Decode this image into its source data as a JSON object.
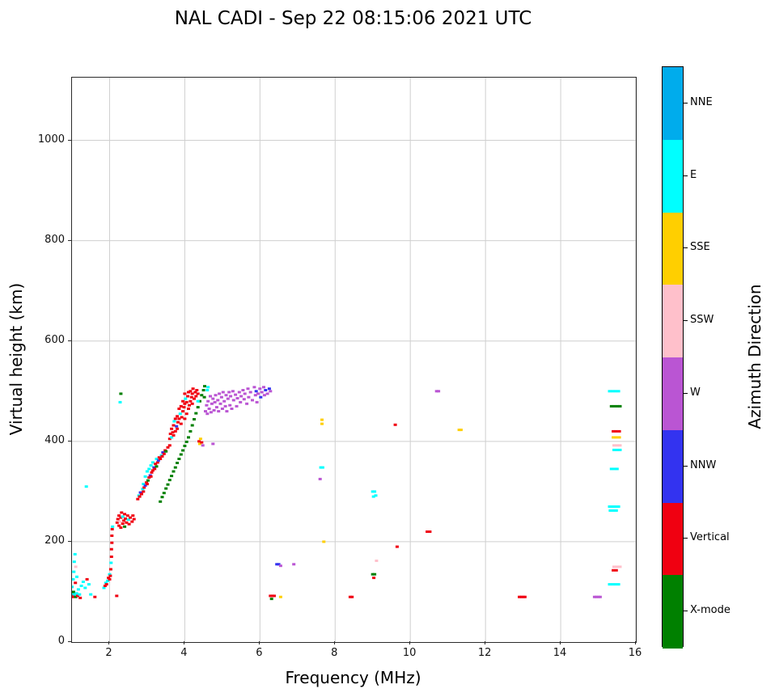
{
  "title": "NAL CADI - Sep 22 08:15:06 2021 UTC",
  "chart_data": {
    "type": "scatter",
    "title": "NAL CADI - Sep 22 08:15:06 2021 UTC",
    "xlabel": "Frequency (MHz)",
    "ylabel": "Virtual height (km)",
    "xlim": [
      1,
      16
    ],
    "ylim": [
      0,
      1125
    ],
    "xticks": [
      2,
      4,
      6,
      8,
      10,
      12,
      14,
      16
    ],
    "yticks": [
      0,
      200,
      400,
      600,
      800,
      1000
    ],
    "grid": true,
    "grid_color": "#cfcfcf",
    "legend": {
      "title": "Azimuth Direction",
      "position": "right-colorbar",
      "entries": [
        {
          "label": "NNE",
          "color": "#00ACEC"
        },
        {
          "label": "E",
          "color": "#00FFFF"
        },
        {
          "label": "SSE",
          "color": "#FFCF00"
        },
        {
          "label": "SSW",
          "color": "#FFC0CB"
        },
        {
          "label": "W",
          "color": "#BA55D3"
        },
        {
          "label": "NNW",
          "color": "#3333F0"
        },
        {
          "label": "Vertical",
          "color": "#F00011"
        },
        {
          "label": "X-mode",
          "color": "#008000"
        }
      ]
    },
    "series_key": {
      "NNE": "NNE",
      "E": "E",
      "SSE": "SSE",
      "SSW": "SSW",
      "W": "W",
      "NNW": "NNW",
      "V": "Vertical",
      "X": "X-mode"
    },
    "points": [
      [
        1.0,
        95,
        "E"
      ],
      [
        1.0,
        110,
        "E"
      ],
      [
        1.02,
        90,
        "V"
      ],
      [
        1.03,
        125,
        "E"
      ],
      [
        1.04,
        100,
        "X"
      ],
      [
        1.05,
        92,
        "V"
      ],
      [
        1.05,
        140,
        "E"
      ],
      [
        1.06,
        160,
        "E"
      ],
      [
        1.07,
        95,
        "E"
      ],
      [
        1.08,
        175,
        "E"
      ],
      [
        1.09,
        118,
        "V"
      ],
      [
        1.1,
        90,
        "X"
      ],
      [
        1.1,
        150,
        "SSW"
      ],
      [
        1.12,
        97,
        "E"
      ],
      [
        1.13,
        130,
        "E"
      ],
      [
        1.15,
        92,
        "V"
      ],
      [
        1.17,
        105,
        "E"
      ],
      [
        1.2,
        95,
        "E"
      ],
      [
        1.22,
        88,
        "V"
      ],
      [
        1.25,
        112,
        "E"
      ],
      [
        1.3,
        120,
        "E"
      ],
      [
        1.35,
        108,
        "E"
      ],
      [
        1.38,
        310,
        "E"
      ],
      [
        1.4,
        125,
        "V"
      ],
      [
        1.45,
        115,
        "E"
      ],
      [
        1.5,
        95,
        "E"
      ],
      [
        1.61,
        90,
        "V"
      ],
      [
        1.85,
        108,
        "E"
      ],
      [
        1.88,
        112,
        "V"
      ],
      [
        1.9,
        118,
        "E"
      ],
      [
        1.92,
        115,
        "V"
      ],
      [
        1.95,
        122,
        "E"
      ],
      [
        1.97,
        128,
        "V"
      ],
      [
        2.0,
        125,
        "V"
      ],
      [
        2.0,
        135,
        "E"
      ],
      [
        2.02,
        132,
        "V"
      ],
      [
        2.03,
        145,
        "V"
      ],
      [
        2.04,
        158,
        "E"
      ],
      [
        2.05,
        170,
        "V"
      ],
      [
        2.05,
        185,
        "V"
      ],
      [
        2.06,
        198,
        "V"
      ],
      [
        2.06,
        212,
        "V"
      ],
      [
        2.07,
        225,
        "V"
      ],
      [
        2.08,
        230,
        "E"
      ],
      [
        2.19,
        92,
        "V"
      ],
      [
        2.2,
        238,
        "V"
      ],
      [
        2.22,
        245,
        "V"
      ],
      [
        2.25,
        232,
        "V"
      ],
      [
        2.25,
        252,
        "V"
      ],
      [
        2.28,
        240,
        "SSW"
      ],
      [
        2.3,
        228,
        "V"
      ],
      [
        2.3,
        248,
        "V"
      ],
      [
        2.32,
        258,
        "V"
      ],
      [
        2.35,
        236,
        "V"
      ],
      [
        2.35,
        250,
        "E"
      ],
      [
        2.38,
        242,
        "V"
      ],
      [
        2.4,
        230,
        "X"
      ],
      [
        2.4,
        255,
        "V"
      ],
      [
        2.42,
        246,
        "V"
      ],
      [
        2.45,
        238,
        "V"
      ],
      [
        2.48,
        252,
        "V"
      ],
      [
        2.5,
        244,
        "E"
      ],
      [
        2.52,
        235,
        "V"
      ],
      [
        2.55,
        248,
        "V"
      ],
      [
        2.6,
        240,
        "V"
      ],
      [
        2.62,
        252,
        "V"
      ],
      [
        2.65,
        245,
        "V"
      ],
      [
        2.28,
        478,
        "E"
      ],
      [
        2.3,
        495,
        "X"
      ],
      [
        2.75,
        285,
        "V"
      ],
      [
        2.78,
        292,
        "E"
      ],
      [
        2.8,
        290,
        "V"
      ],
      [
        2.82,
        298,
        "NNW"
      ],
      [
        2.85,
        295,
        "V"
      ],
      [
        2.88,
        305,
        "E"
      ],
      [
        2.9,
        300,
        "V"
      ],
      [
        2.9,
        315,
        "E"
      ],
      [
        2.92,
        308,
        "V"
      ],
      [
        2.95,
        312,
        "NNW"
      ],
      [
        2.95,
        330,
        "E"
      ],
      [
        2.98,
        318,
        "V"
      ],
      [
        3.0,
        315,
        "V"
      ],
      [
        3.0,
        340,
        "E"
      ],
      [
        3.02,
        322,
        "X"
      ],
      [
        3.05,
        328,
        "V"
      ],
      [
        3.05,
        345,
        "E"
      ],
      [
        3.08,
        332,
        "NNW"
      ],
      [
        3.1,
        330,
        "V"
      ],
      [
        3.1,
        352,
        "E"
      ],
      [
        3.12,
        338,
        "V"
      ],
      [
        3.15,
        342,
        "V"
      ],
      [
        3.15,
        358,
        "E"
      ],
      [
        3.18,
        348,
        "NNW"
      ],
      [
        3.2,
        345,
        "V"
      ],
      [
        3.22,
        355,
        "V"
      ],
      [
        3.25,
        350,
        "X"
      ],
      [
        3.25,
        365,
        "E"
      ],
      [
        3.28,
        358,
        "V"
      ],
      [
        3.3,
        362,
        "NNW"
      ],
      [
        3.32,
        368,
        "V"
      ],
      [
        3.35,
        365,
        "V"
      ],
      [
        3.38,
        372,
        "E"
      ],
      [
        3.4,
        370,
        "V"
      ],
      [
        3.42,
        378,
        "NNW"
      ],
      [
        3.45,
        375,
        "V"
      ],
      [
        3.48,
        382,
        "V"
      ],
      [
        3.5,
        380,
        "X"
      ],
      [
        3.55,
        388,
        "V"
      ],
      [
        3.6,
        392,
        "V"
      ],
      [
        3.35,
        280,
        "X"
      ],
      [
        3.4,
        289,
        "X"
      ],
      [
        3.45,
        297,
        "X"
      ],
      [
        3.5,
        306,
        "X"
      ],
      [
        3.55,
        314,
        "X"
      ],
      [
        3.6,
        323,
        "X"
      ],
      [
        3.65,
        331,
        "X"
      ],
      [
        3.7,
        340,
        "X"
      ],
      [
        3.75,
        348,
        "X"
      ],
      [
        3.8,
        357,
        "X"
      ],
      [
        3.85,
        365,
        "X"
      ],
      [
        3.9,
        374,
        "X"
      ],
      [
        3.95,
        382,
        "X"
      ],
      [
        4.0,
        391,
        "X"
      ],
      [
        4.05,
        399,
        "X"
      ],
      [
        4.1,
        408,
        "X"
      ],
      [
        4.15,
        420,
        "X"
      ],
      [
        4.2,
        432,
        "X"
      ],
      [
        4.25,
        444,
        "X"
      ],
      [
        4.3,
        456,
        "X"
      ],
      [
        4.35,
        468,
        "X"
      ],
      [
        4.4,
        480,
        "X"
      ],
      [
        4.45,
        492,
        "X"
      ],
      [
        4.5,
        502,
        "X"
      ],
      [
        4.52,
        488,
        "X"
      ],
      [
        4.53,
        510,
        "X"
      ],
      [
        3.6,
        405,
        "V"
      ],
      [
        3.62,
        415,
        "V"
      ],
      [
        3.65,
        408,
        "E"
      ],
      [
        3.65,
        425,
        "V"
      ],
      [
        3.68,
        418,
        "V"
      ],
      [
        3.7,
        412,
        "V"
      ],
      [
        3.7,
        432,
        "V"
      ],
      [
        3.72,
        440,
        "E"
      ],
      [
        3.75,
        420,
        "V"
      ],
      [
        3.75,
        445,
        "V"
      ],
      [
        3.78,
        430,
        "NNW"
      ],
      [
        3.8,
        425,
        "V"
      ],
      [
        3.8,
        450,
        "V"
      ],
      [
        3.82,
        438,
        "V"
      ],
      [
        3.85,
        445,
        "V"
      ],
      [
        3.85,
        465,
        "V"
      ],
      [
        3.88,
        455,
        "E"
      ],
      [
        3.9,
        435,
        "V"
      ],
      [
        3.9,
        470,
        "V"
      ],
      [
        3.92,
        448,
        "V"
      ],
      [
        3.95,
        460,
        "V"
      ],
      [
        3.95,
        480,
        "V"
      ],
      [
        3.98,
        468,
        "V"
      ],
      [
        4.0,
        445,
        "V"
      ],
      [
        4.0,
        475,
        "V"
      ],
      [
        4.0,
        495,
        "V"
      ],
      [
        4.02,
        485,
        "E"
      ],
      [
        4.05,
        455,
        "V"
      ],
      [
        4.05,
        478,
        "V"
      ],
      [
        4.08,
        490,
        "V"
      ],
      [
        4.1,
        465,
        "V"
      ],
      [
        4.1,
        498,
        "V"
      ],
      [
        4.12,
        472,
        "V"
      ],
      [
        4.15,
        480,
        "V"
      ],
      [
        4.15,
        500,
        "V"
      ],
      [
        4.18,
        488,
        "V"
      ],
      [
        4.2,
        475,
        "V"
      ],
      [
        4.2,
        495,
        "V"
      ],
      [
        4.22,
        505,
        "V"
      ],
      [
        4.25,
        485,
        "V"
      ],
      [
        4.28,
        498,
        "V"
      ],
      [
        4.3,
        490,
        "V"
      ],
      [
        4.32,
        502,
        "V"
      ],
      [
        4.35,
        495,
        "V"
      ],
      [
        4.35,
        480,
        "E"
      ],
      [
        4.38,
        400,
        "V"
      ],
      [
        4.4,
        395,
        "SSE"
      ],
      [
        4.42,
        405,
        "SSE"
      ],
      [
        4.45,
        398,
        "V"
      ],
      [
        4.48,
        392,
        "W"
      ],
      [
        4.55,
        460,
        "W"
      ],
      [
        4.58,
        472,
        "W"
      ],
      [
        4.6,
        455,
        "W"
      ],
      [
        4.62,
        480,
        "W"
      ],
      [
        4.65,
        465,
        "W"
      ],
      [
        4.68,
        490,
        "W"
      ],
      [
        4.7,
        458,
        "W"
      ],
      [
        4.72,
        475,
        "W"
      ],
      [
        4.75,
        485,
        "W"
      ],
      [
        4.78,
        462,
        "W"
      ],
      [
        4.8,
        478,
        "W"
      ],
      [
        4.82,
        492,
        "W"
      ],
      [
        4.85,
        468,
        "W"
      ],
      [
        4.88,
        482,
        "W"
      ],
      [
        4.9,
        460,
        "W"
      ],
      [
        4.92,
        495,
        "W"
      ],
      [
        4.95,
        475,
        "W"
      ],
      [
        4.98,
        488,
        "W"
      ],
      [
        5.0,
        465,
        "W"
      ],
      [
        5.02,
        498,
        "W"
      ],
      [
        5.05,
        480,
        "W"
      ],
      [
        5.08,
        470,
        "W"
      ],
      [
        5.1,
        492,
        "W"
      ],
      [
        5.12,
        460,
        "W"
      ],
      [
        5.15,
        485,
        "W"
      ],
      [
        5.18,
        498,
        "W"
      ],
      [
        5.2,
        472,
        "W"
      ],
      [
        5.22,
        490,
        "W"
      ],
      [
        5.25,
        465,
        "W"
      ],
      [
        5.28,
        500,
        "W"
      ],
      [
        5.3,
        482,
        "W"
      ],
      [
        5.35,
        493,
        "W"
      ],
      [
        5.38,
        470,
        "W"
      ],
      [
        5.4,
        486,
        "W"
      ],
      [
        5.45,
        498,
        "W"
      ],
      [
        5.48,
        478,
        "W"
      ],
      [
        5.5,
        490,
        "W"
      ],
      [
        5.55,
        502,
        "W"
      ],
      [
        5.58,
        484,
        "W"
      ],
      [
        5.6,
        495,
        "W"
      ],
      [
        5.65,
        475,
        "W"
      ],
      [
        5.68,
        505,
        "W"
      ],
      [
        5.7,
        488,
        "W"
      ],
      [
        5.75,
        498,
        "W"
      ],
      [
        5.8,
        482,
        "W"
      ],
      [
        5.85,
        508,
        "W"
      ],
      [
        5.88,
        492,
        "W"
      ],
      [
        5.9,
        500,
        "NNW"
      ],
      [
        5.92,
        478,
        "W"
      ],
      [
        5.95,
        495,
        "W"
      ],
      [
        6.0,
        505,
        "W"
      ],
      [
        6.02,
        488,
        "NNW"
      ],
      [
        6.05,
        498,
        "W"
      ],
      [
        6.1,
        508,
        "W"
      ],
      [
        6.12,
        492,
        "W"
      ],
      [
        6.15,
        502,
        "NNW"
      ],
      [
        6.2,
        495,
        "W"
      ],
      [
        6.25,
        505,
        "NNW"
      ],
      [
        6.28,
        500,
        "W"
      ],
      [
        4.75,
        395,
        "W"
      ],
      [
        4.6,
        502,
        "E"
      ],
      [
        4.62,
        508,
        "E"
      ],
      [
        6.28,
        92,
        "V"
      ],
      [
        6.33,
        92,
        "V"
      ],
      [
        6.38,
        92,
        "V"
      ],
      [
        6.31,
        86,
        "X"
      ],
      [
        6.55,
        90,
        "SSE"
      ],
      [
        6.45,
        155,
        "NNW"
      ],
      [
        6.5,
        155,
        "NNW"
      ],
      [
        6.55,
        152,
        "W"
      ],
      [
        6.9,
        155,
        "W"
      ],
      [
        7.6,
        325,
        "W"
      ],
      [
        7.62,
        348,
        "E"
      ],
      [
        7.67,
        348,
        "E"
      ],
      [
        7.65,
        435,
        "SSE"
      ],
      [
        7.65,
        443,
        "SSE"
      ],
      [
        7.7,
        200,
        "SSE"
      ],
      [
        8.4,
        90,
        "V"
      ],
      [
        8.45,
        90,
        "V"
      ],
      [
        9.0,
        300,
        "E"
      ],
      [
        9.05,
        300,
        "E"
      ],
      [
        9.02,
        290,
        "E"
      ],
      [
        9.08,
        292,
        "E"
      ],
      [
        9.0,
        135,
        "X"
      ],
      [
        9.05,
        135,
        "X"
      ],
      [
        9.03,
        128,
        "V"
      ],
      [
        9.1,
        162,
        "SSW"
      ],
      [
        9.6,
        433,
        "V"
      ],
      [
        9.65,
        190,
        "V"
      ],
      [
        10.45,
        220,
        "V"
      ],
      [
        10.52,
        220,
        "V"
      ],
      [
        10.7,
        500,
        "W"
      ],
      [
        10.75,
        500,
        "W"
      ],
      [
        11.3,
        423,
        "SSE"
      ],
      [
        11.35,
        423,
        "SSE"
      ],
      [
        12.9,
        90,
        "V"
      ],
      [
        12.95,
        90,
        "V"
      ],
      [
        13.0,
        90,
        "V"
      ],
      [
        13.05,
        90,
        "V"
      ],
      [
        14.9,
        90,
        "W"
      ],
      [
        14.95,
        90,
        "W"
      ],
      [
        15.0,
        90,
        "W"
      ],
      [
        15.05,
        90,
        "W"
      ],
      [
        15.3,
        500,
        "E"
      ],
      [
        15.38,
        500,
        "E"
      ],
      [
        15.46,
        500,
        "E"
      ],
      [
        15.54,
        500,
        "E"
      ],
      [
        15.35,
        470,
        "X"
      ],
      [
        15.43,
        470,
        "X"
      ],
      [
        15.51,
        470,
        "X"
      ],
      [
        15.58,
        470,
        "X"
      ],
      [
        15.4,
        420,
        "V"
      ],
      [
        15.48,
        420,
        "V"
      ],
      [
        15.56,
        420,
        "V"
      ],
      [
        15.4,
        408,
        "SSE"
      ],
      [
        15.48,
        408,
        "SSE"
      ],
      [
        15.56,
        408,
        "SSE"
      ],
      [
        15.42,
        392,
        "SSW"
      ],
      [
        15.5,
        392,
        "SSW"
      ],
      [
        15.58,
        392,
        "SSW"
      ],
      [
        15.42,
        383,
        "E"
      ],
      [
        15.5,
        383,
        "E"
      ],
      [
        15.58,
        383,
        "E"
      ],
      [
        15.35,
        345,
        "E"
      ],
      [
        15.43,
        345,
        "E"
      ],
      [
        15.5,
        345,
        "E"
      ],
      [
        15.3,
        270,
        "E"
      ],
      [
        15.38,
        270,
        "E"
      ],
      [
        15.46,
        270,
        "E"
      ],
      [
        15.54,
        270,
        "E"
      ],
      [
        15.32,
        262,
        "E"
      ],
      [
        15.4,
        262,
        "E"
      ],
      [
        15.48,
        262,
        "E"
      ],
      [
        15.42,
        150,
        "SSW"
      ],
      [
        15.5,
        150,
        "SSW"
      ],
      [
        15.58,
        150,
        "SSW"
      ],
      [
        15.4,
        143,
        "V"
      ],
      [
        15.48,
        143,
        "V"
      ],
      [
        15.3,
        115,
        "E"
      ],
      [
        15.38,
        115,
        "E"
      ],
      [
        15.46,
        115,
        "E"
      ],
      [
        15.54,
        115,
        "E"
      ]
    ]
  }
}
